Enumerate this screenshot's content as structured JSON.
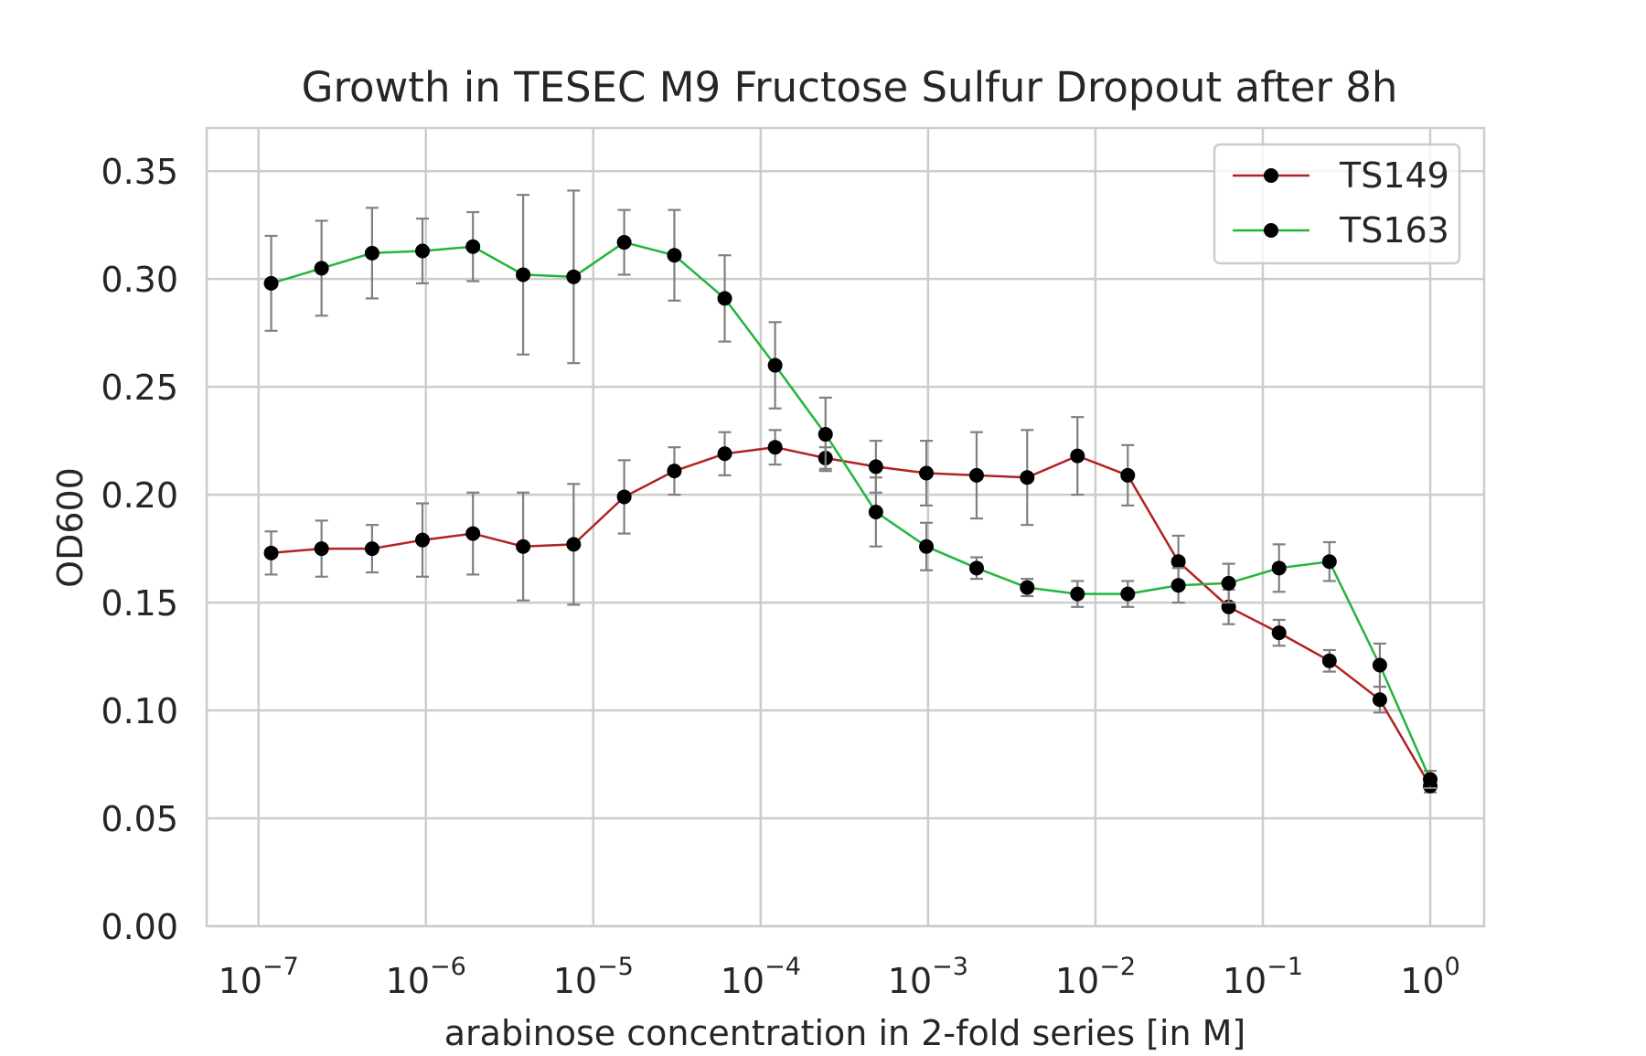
{
  "chart_data": {
    "type": "line",
    "title": "Growth in TESEC M9 Fructose Sulfur Dropout after 8h",
    "xlabel": "arabinose concentration in 2-fold series [in M]",
    "ylabel": "OD600",
    "xscale": "log",
    "xlim": [
      4.9e-08,
      2.1
    ],
    "ylim": [
      0,
      0.37
    ],
    "grid": true,
    "legend_position": "top-right",
    "x_ticks": [
      {
        "value": 1e-07,
        "base": "10",
        "exp": "−7"
      },
      {
        "value": 1e-06,
        "base": "10",
        "exp": "−6"
      },
      {
        "value": 1e-05,
        "base": "10",
        "exp": "−5"
      },
      {
        "value": 0.0001,
        "base": "10",
        "exp": "−4"
      },
      {
        "value": 0.001,
        "base": "10",
        "exp": "−3"
      },
      {
        "value": 0.01,
        "base": "10",
        "exp": "−2"
      },
      {
        "value": 0.1,
        "base": "10",
        "exp": "−1"
      },
      {
        "value": 1,
        "base": "10",
        "exp": "0"
      }
    ],
    "y_ticks": [
      {
        "value": 0.0,
        "label": "0.00"
      },
      {
        "value": 0.05,
        "label": "0.05"
      },
      {
        "value": 0.1,
        "label": "0.10"
      },
      {
        "value": 0.15,
        "label": "0.15"
      },
      {
        "value": 0.2,
        "label": "0.20"
      },
      {
        "value": 0.25,
        "label": "0.25"
      },
      {
        "value": 0.3,
        "label": "0.30"
      },
      {
        "value": 0.35,
        "label": "0.35"
      }
    ],
    "x": [
      1.19e-07,
      2.38e-07,
      4.77e-07,
      9.54e-07,
      1.91e-06,
      3.81e-06,
      7.63e-06,
      1.53e-05,
      3.05e-05,
      6.1e-05,
      0.000122,
      0.000244,
      0.000488,
      0.000977,
      0.00195,
      0.00391,
      0.00781,
      0.0156,
      0.0313,
      0.0625,
      0.125,
      0.25,
      0.5,
      1.0
    ],
    "series": [
      {
        "name": "TS149",
        "color": "#b22222",
        "values": [
          0.173,
          0.175,
          0.175,
          0.179,
          0.182,
          0.176,
          0.177,
          0.199,
          0.211,
          0.219,
          0.222,
          0.217,
          0.213,
          0.21,
          0.209,
          0.208,
          0.218,
          0.209,
          0.169,
          0.148,
          0.136,
          0.123,
          0.105,
          0.065
        ],
        "errors": [
          0.01,
          0.013,
          0.011,
          0.017,
          0.019,
          0.025,
          0.028,
          0.017,
          0.011,
          0.01,
          0.008,
          0.005,
          0.012,
          0.015,
          0.02,
          0.022,
          0.018,
          0.014,
          0.012,
          0.008,
          0.006,
          0.005,
          0.006,
          0.003
        ]
      },
      {
        "name": "TS163",
        "color": "#22b53c",
        "values": [
          0.298,
          0.305,
          0.312,
          0.313,
          0.315,
          0.302,
          0.301,
          0.317,
          0.311,
          0.291,
          0.26,
          0.228,
          0.192,
          0.176,
          0.166,
          0.157,
          0.154,
          0.154,
          0.158,
          0.159,
          0.166,
          0.169,
          0.121,
          0.068
        ],
        "errors": [
          0.022,
          0.022,
          0.021,
          0.015,
          0.016,
          0.037,
          0.04,
          0.015,
          0.021,
          0.02,
          0.02,
          0.017,
          0.016,
          0.011,
          0.005,
          0.004,
          0.006,
          0.006,
          0.008,
          0.009,
          0.011,
          0.009,
          0.01,
          0.004
        ]
      }
    ],
    "marker_color": "#000000",
    "errorbar_color": "#808080"
  }
}
